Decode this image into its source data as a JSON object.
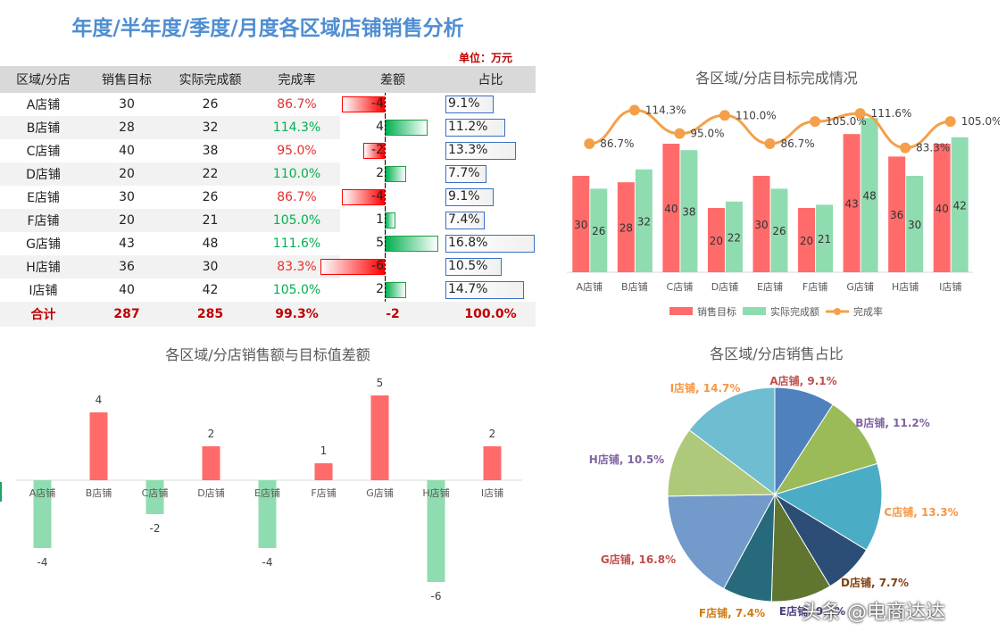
{
  "header": {
    "title": "年度/半年度/季度/月度各区域店铺销售分析",
    "unit": "单位：万元"
  },
  "table": {
    "columns": [
      "区域/分店",
      "销售目标",
      "实际完成额",
      "完成率",
      "差额",
      "占比"
    ],
    "rows": [
      {
        "store": "A店铺",
        "target": "30",
        "actual": "26",
        "rate": "86.7%",
        "diff": "-4",
        "share": "9.1%"
      },
      {
        "store": "B店铺",
        "target": "28",
        "actual": "32",
        "rate": "114.3%",
        "diff": "4",
        "share": "11.2%"
      },
      {
        "store": "C店铺",
        "target": "40",
        "actual": "38",
        "rate": "95.0%",
        "diff": "-2",
        "share": "13.3%"
      },
      {
        "store": "D店铺",
        "target": "20",
        "actual": "22",
        "rate": "110.0%",
        "diff": "2",
        "share": "7.7%"
      },
      {
        "store": "E店铺",
        "target": "30",
        "actual": "26",
        "rate": "86.7%",
        "diff": "-4",
        "share": "9.1%"
      },
      {
        "store": "F店铺",
        "target": "20",
        "actual": "21",
        "rate": "105.0%",
        "diff": "1",
        "share": "7.4%"
      },
      {
        "store": "G店铺",
        "target": "43",
        "actual": "48",
        "rate": "111.6%",
        "diff": "5",
        "share": "16.8%"
      },
      {
        "store": "H店铺",
        "target": "36",
        "actual": "30",
        "rate": "83.3%",
        "diff": "-6",
        "share": "10.5%"
      },
      {
        "store": "I店铺",
        "target": "40",
        "actual": "42",
        "rate": "105.0%",
        "diff": "2",
        "share": "14.7%"
      }
    ],
    "total": {
      "store": "合计",
      "target": "287",
      "actual": "285",
      "rate": "99.3%",
      "diff": "-2",
      "share": "100.0%"
    }
  },
  "colors": {
    "target": "#ff6b6b",
    "actual": "#8fdcb0",
    "rate_line": "#f4a04a",
    "pos_diff": "#ff6b6b",
    "neg_diff": "#8fdcb0"
  },
  "chart_data": [
    {
      "type": "bar",
      "title": "各区域/分店目标完成情况",
      "categories": [
        "A店铺",
        "B店铺",
        "C店铺",
        "D店铺",
        "E店铺",
        "F店铺",
        "G店铺",
        "H店铺",
        "I店铺"
      ],
      "series": [
        {
          "name": "销售目标",
          "type": "bar",
          "values": [
            30,
            28,
            40,
            20,
            30,
            20,
            43,
            36,
            40
          ]
        },
        {
          "name": "实际完成额",
          "type": "bar",
          "values": [
            26,
            32,
            38,
            22,
            26,
            21,
            48,
            30,
            42
          ]
        },
        {
          "name": "完成率",
          "type": "line",
          "values": [
            86.7,
            114.3,
            95.0,
            110.0,
            86.7,
            105.0,
            111.6,
            83.3,
            105.0
          ],
          "labels": [
            "86.7%",
            "114.3%",
            "95.0%",
            "110.0%",
            "86.7%",
            "105.0%",
            "111.6%",
            "83.3%",
            "105.0%"
          ]
        }
      ],
      "legend": "bottom",
      "grid": false
    },
    {
      "type": "bar",
      "title": "各区域/分店销售额与目标值差额",
      "categories": [
        "A店铺",
        "B店铺",
        "C店铺",
        "D店铺",
        "E店铺",
        "F店铺",
        "G店铺",
        "H店铺",
        "I店铺"
      ],
      "values": [
        -4,
        4,
        -2,
        2,
        -4,
        1,
        5,
        -6,
        2
      ],
      "ylim": [
        -6,
        5
      ],
      "grid": false
    },
    {
      "type": "pie",
      "title": "各区域/分店销售占比",
      "slices": [
        {
          "label": "A店铺, 9.1%",
          "value": 9.1,
          "color": "#4f81bd"
        },
        {
          "label": "B店铺, 11.2%",
          "value": 11.2,
          "color": "#9bbb59"
        },
        {
          "label": "C店铺, 13.3%",
          "value": 13.3,
          "color": "#4bacc6"
        },
        {
          "label": "D店铺, 7.7%",
          "value": 7.7,
          "color": "#2c4d75"
        },
        {
          "label": "E店铺, 9.1%",
          "value": 9.1,
          "color": "#5f7530"
        },
        {
          "label": "F店铺, 7.4%",
          "value": 7.4,
          "color": "#276a7c"
        },
        {
          "label": "G店铺, 16.8%",
          "value": 16.8,
          "color": "#729aca"
        },
        {
          "label": "H店铺, 10.5%",
          "value": 10.5,
          "color": "#afc97a"
        },
        {
          "label": "I店铺, 14.7%",
          "value": 14.7,
          "color": "#6fbdd1"
        }
      ],
      "label_colors": [
        "#c0504d",
        "#8064a2",
        "#f79646",
        "#7f3f10",
        "#4f3f7f",
        "#d07a10",
        "#c0504d",
        "#8064a2",
        "#f79646"
      ]
    }
  ],
  "watermark": "头条 @电商达达"
}
